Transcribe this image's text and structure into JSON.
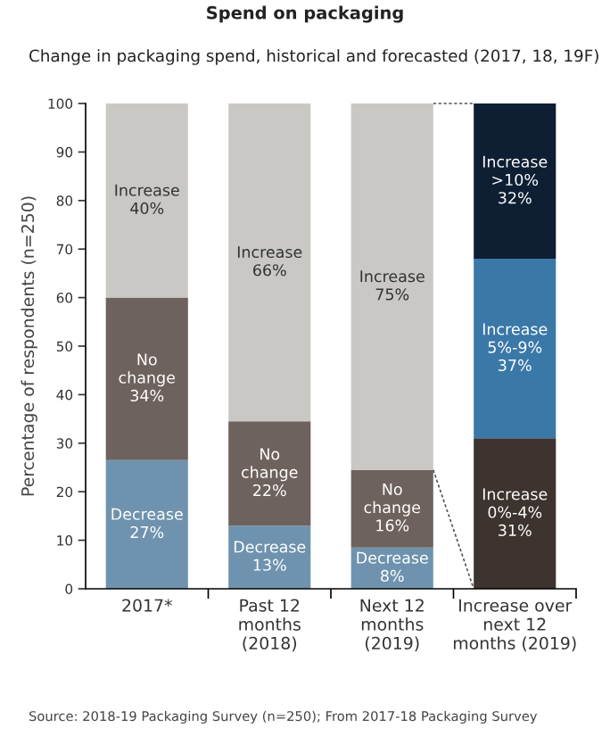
{
  "chart_data": {
    "type": "bar",
    "stacked": true,
    "title": "Spend on packaging",
    "subtitle": "Change in packaging spend, historical and forecasted (2017, 18, 19F)",
    "ylabel": "Percentage of respondents (n=250)",
    "categories": [
      "2017*",
      "Past 12\nmonths\n(2018)",
      "Next 12\nmonths\n(2019)",
      "Increase over\nnext 12\nmonths (2019)"
    ],
    "ylim": [
      0,
      100
    ],
    "yticks": [
      0,
      10,
      20,
      30,
      40,
      50,
      60,
      70,
      80,
      90,
      100
    ],
    "grid": false,
    "legend": false,
    "series": [
      {
        "name": "Decrease",
        "color": "#6f93ae",
        "values": [
          26.5,
          13,
          8.5,
          null
        ],
        "value_labels": [
          "27%",
          "13%",
          "8%",
          null
        ]
      },
      {
        "name": "No\nchange",
        "color": "#6e625e",
        "values": [
          33.5,
          21.5,
          16,
          null
        ],
        "value_labels": [
          "34%",
          "22%",
          "16%",
          null
        ]
      },
      {
        "name": "Increase",
        "color": "#c9c8c4",
        "values": [
          40,
          65.5,
          75.5,
          null
        ],
        "value_labels": [
          "40%",
          "66%",
          "75%",
          null
        ]
      },
      {
        "name": "Increase\n0%-4%",
        "color": "#3d332f",
        "values": [
          null,
          null,
          null,
          31
        ],
        "value_labels": [
          null,
          null,
          null,
          "31%"
        ]
      },
      {
        "name": "Increase\n5%-9%",
        "color": "#3a78a8",
        "values": [
          null,
          null,
          null,
          37
        ],
        "value_labels": [
          null,
          null,
          null,
          "37%"
        ]
      },
      {
        "name": "Increase\n>10%",
        "color": "#0e1f33",
        "values": [
          null,
          null,
          null,
          32
        ],
        "value_labels": [
          null,
          null,
          null,
          "32%"
        ]
      }
    ],
    "annotations": [
      "Source: 2018-19 Packaging Survey (n=250); From 2017-18 Packaging Survey"
    ]
  }
}
